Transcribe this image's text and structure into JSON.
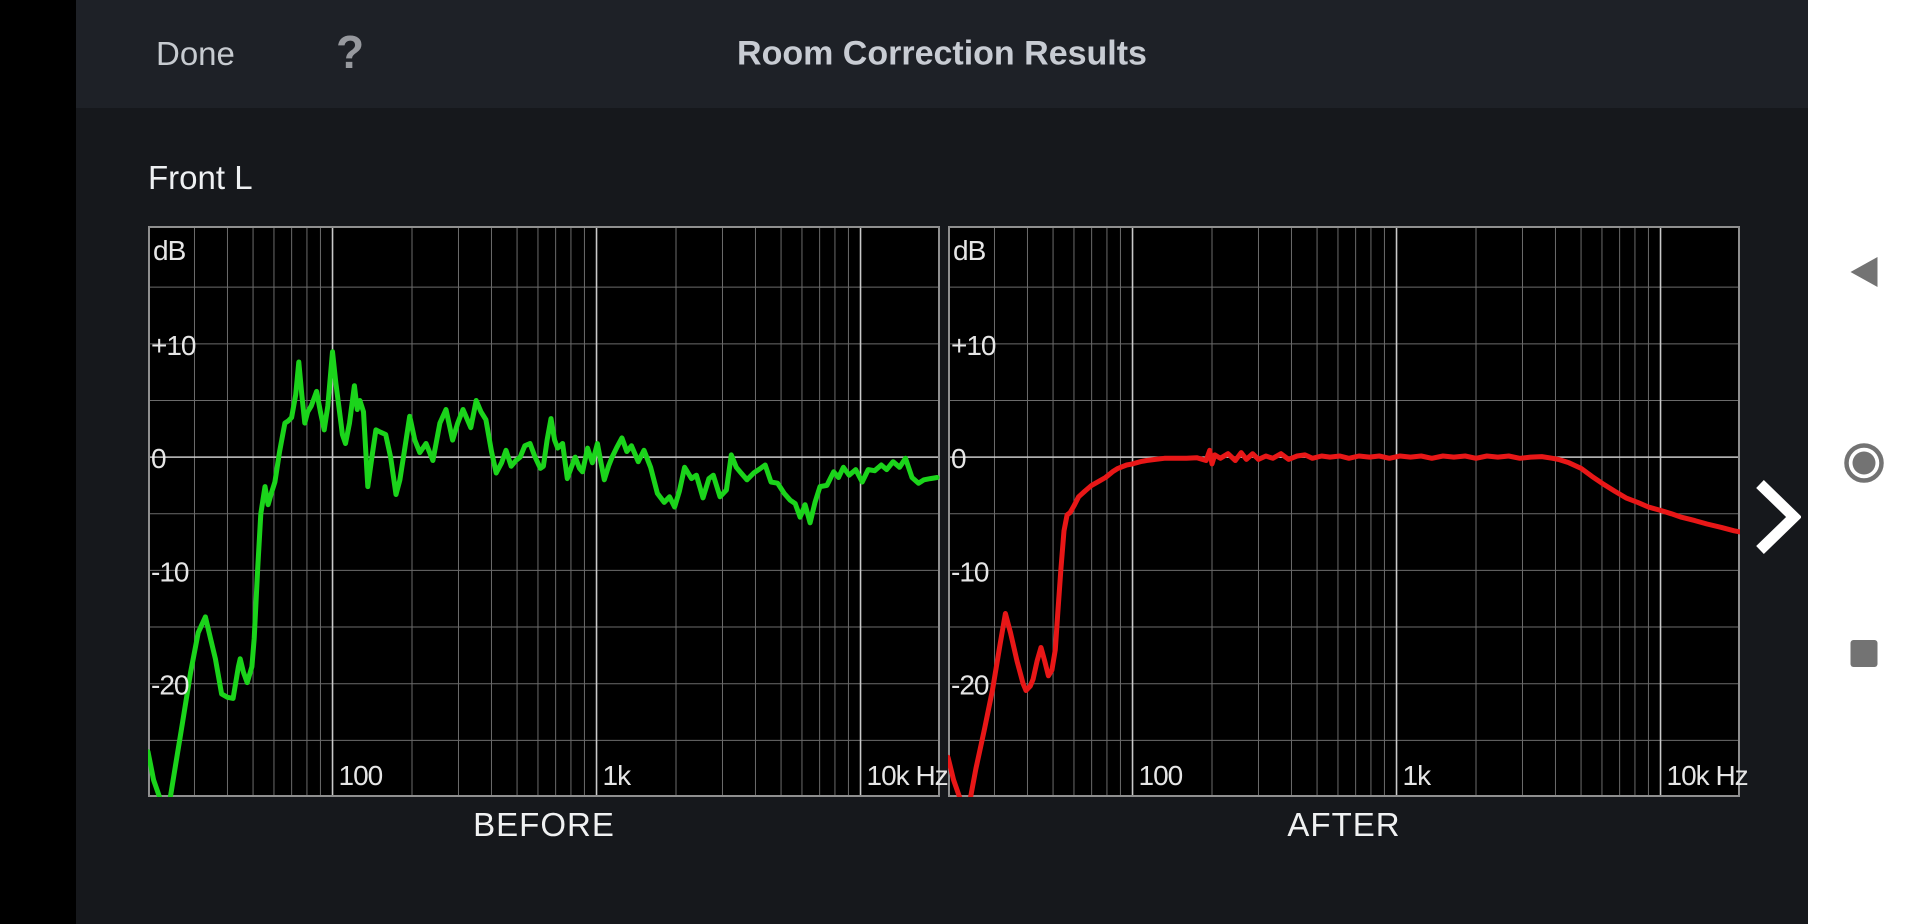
{
  "app": {
    "top_bar": {
      "done_label": "Done",
      "help_icon": "?",
      "title": "Room Correction Results"
    },
    "channel_label": "Front L",
    "pager": {
      "next_chevron": "next"
    }
  },
  "nav_bar": {
    "back_icon": "back-triangle",
    "home_icon": "home-circle",
    "recents_icon": "recents-square"
  },
  "colors": {
    "plot_bg": "#000000",
    "plot_border": "#8f8f8f",
    "grid_minor": "#6b6b6b",
    "grid_major": "#c9c9c9",
    "axis_text": "#e6e6e6",
    "before_curve": "#1bd41b",
    "after_curve": "#e81717",
    "nav_icon": "#737373",
    "chevron": "#ffffff"
  },
  "chart_data": [
    {
      "type": "line",
      "title": "BEFORE",
      "color": "#1bd41b",
      "ylabel": "dB",
      "xscale": "log",
      "x_range": [
        20,
        20000
      ],
      "y_range": [
        -30,
        20.4
      ],
      "grid": {
        "h_lines": [
          {
            "db": 15
          },
          {
            "db": 10,
            "label": "+10"
          },
          {
            "db": 5
          },
          {
            "db": 0,
            "label": "0",
            "major": true
          },
          {
            "db": -5
          },
          {
            "db": -10,
            "label": "-10"
          },
          {
            "db": -15
          },
          {
            "db": -20,
            "label": "-20"
          },
          {
            "db": -25
          }
        ],
        "v_lines": [
          {
            "f": 30
          },
          {
            "f": 40
          },
          {
            "f": 50
          },
          {
            "f": 60
          },
          {
            "f": 70
          },
          {
            "f": 80
          },
          {
            "f": 90
          },
          {
            "f": 100,
            "label": "100",
            "major": true
          },
          {
            "f": 200
          },
          {
            "f": 300
          },
          {
            "f": 400
          },
          {
            "f": 500
          },
          {
            "f": 600
          },
          {
            "f": 700
          },
          {
            "f": 800
          },
          {
            "f": 900
          },
          {
            "f": 1000,
            "label": "1k",
            "major": true
          },
          {
            "f": 2000
          },
          {
            "f": 3000
          },
          {
            "f": 4000
          },
          {
            "f": 5000
          },
          {
            "f": 6000
          },
          {
            "f": 7000
          },
          {
            "f": 8000
          },
          {
            "f": 9000
          },
          {
            "f": 10000,
            "label": "10k Hz",
            "major": true
          }
        ]
      },
      "points": [
        [
          20,
          -26
        ],
        [
          21,
          -28.5
        ],
        [
          22.5,
          -30.5
        ],
        [
          24,
          -30.8
        ],
        [
          25.5,
          -27
        ],
        [
          27,
          -23.5
        ],
        [
          29,
          -19
        ],
        [
          31,
          -15.5
        ],
        [
          33,
          -14.1
        ],
        [
          34.5,
          -16
        ],
        [
          36,
          -17.8
        ],
        [
          38,
          -20.9
        ],
        [
          40,
          -21.2
        ],
        [
          42,
          -21.3
        ],
        [
          44,
          -18.5
        ],
        [
          44.7,
          -17.8
        ],
        [
          46,
          -19
        ],
        [
          47.5,
          -19.9
        ],
        [
          49.5,
          -18.5
        ],
        [
          50.5,
          -16
        ],
        [
          52,
          -10
        ],
        [
          53.5,
          -5
        ],
        [
          55.5,
          -2.6
        ],
        [
          57,
          -4.2
        ],
        [
          59,
          -3
        ],
        [
          60.5,
          -2.2
        ],
        [
          63,
          0.5
        ],
        [
          66,
          3
        ],
        [
          68,
          3.2
        ],
        [
          70,
          3.5
        ],
        [
          72.5,
          5.5
        ],
        [
          74.5,
          8.4
        ],
        [
          76.5,
          5.5
        ],
        [
          78.5,
          3
        ],
        [
          80.5,
          4
        ],
        [
          83,
          4.5
        ],
        [
          87,
          5.8
        ],
        [
          90,
          4
        ],
        [
          93,
          2.4
        ],
        [
          96,
          4.5
        ],
        [
          100,
          9.3
        ],
        [
          103,
          6.5
        ],
        [
          105,
          5
        ],
        [
          109,
          2
        ],
        [
          112,
          1.2
        ],
        [
          116,
          3
        ],
        [
          121,
          6.3
        ],
        [
          124,
          4.2
        ],
        [
          127,
          5
        ],
        [
          131,
          4
        ],
        [
          136,
          -2.6
        ],
        [
          141,
          0
        ],
        [
          146,
          2.4
        ],
        [
          152,
          2.2
        ],
        [
          159,
          2
        ],
        [
          166,
          0
        ],
        [
          174,
          -3.3
        ],
        [
          180,
          -2
        ],
        [
          187,
          0.5
        ],
        [
          196,
          3.6
        ],
        [
          205,
          1.5
        ],
        [
          214,
          0.4
        ],
        [
          226,
          1.2
        ],
        [
          240,
          -0.3
        ],
        [
          255,
          3
        ],
        [
          269,
          4.2
        ],
        [
          285,
          1.5
        ],
        [
          298,
          3
        ],
        [
          312,
          4.2
        ],
        [
          334,
          2.6
        ],
        [
          350,
          5
        ],
        [
          365,
          4
        ],
        [
          381,
          3.3
        ],
        [
          400,
          0.5
        ],
        [
          417,
          -1.4
        ],
        [
          437,
          -0.5
        ],
        [
          454,
          0.6
        ],
        [
          475,
          -0.8
        ],
        [
          495,
          -0.3
        ],
        [
          514,
          0
        ],
        [
          535,
          1
        ],
        [
          560,
          1.2
        ],
        [
          585,
          0
        ],
        [
          613,
          -1
        ],
        [
          629,
          -0.8
        ],
        [
          650,
          1.5
        ],
        [
          672,
          3.4
        ],
        [
          694,
          1.5
        ],
        [
          713,
          0.8
        ],
        [
          744,
          1.2
        ],
        [
          775,
          -1.9
        ],
        [
          800,
          -1
        ],
        [
          830,
          0
        ],
        [
          862,
          -1
        ],
        [
          885,
          -1.3
        ],
        [
          925,
          0.8
        ],
        [
          965,
          -0.5
        ],
        [
          1008,
          1.2
        ],
        [
          1040,
          -0.5
        ],
        [
          1070,
          -2
        ],
        [
          1110,
          -0.8
        ],
        [
          1145,
          0
        ],
        [
          1190,
          0.8
        ],
        [
          1248,
          1.7
        ],
        [
          1302,
          0.5
        ],
        [
          1357,
          1
        ],
        [
          1438,
          -0.4
        ],
        [
          1513,
          0.6
        ],
        [
          1603,
          -0.9
        ],
        [
          1700,
          -3.2
        ],
        [
          1805,
          -4
        ],
        [
          1890,
          -3.5
        ],
        [
          1975,
          -4.4
        ],
        [
          2060,
          -3
        ],
        [
          2155,
          -0.9
        ],
        [
          2290,
          -1.9
        ],
        [
          2390,
          -1.6
        ],
        [
          2530,
          -3.6
        ],
        [
          2665,
          -1.9
        ],
        [
          2770,
          -1.6
        ],
        [
          2935,
          -3.5
        ],
        [
          3105,
          -2.9
        ],
        [
          3240,
          0.2
        ],
        [
          3385,
          -0.9
        ],
        [
          3530,
          -1.4
        ],
        [
          3715,
          -2
        ],
        [
          3940,
          -1.4
        ],
        [
          4180,
          -1
        ],
        [
          4355,
          -0.7
        ],
        [
          4580,
          -2.2
        ],
        [
          4850,
          -2.3
        ],
        [
          5140,
          -3.2
        ],
        [
          5415,
          -3.8
        ],
        [
          5655,
          -4.1
        ],
        [
          5905,
          -5.3
        ],
        [
          6165,
          -4.2
        ],
        [
          6440,
          -5.8
        ],
        [
          6725,
          -4
        ],
        [
          7020,
          -2.6
        ],
        [
          7455,
          -2.5
        ],
        [
          7915,
          -1.3
        ],
        [
          8255,
          -1.8
        ],
        [
          8610,
          -0.9
        ],
        [
          9055,
          -1.6
        ],
        [
          9585,
          -1.1
        ],
        [
          10150,
          -2.2
        ],
        [
          10690,
          -1.1
        ],
        [
          11320,
          -1.2
        ],
        [
          11990,
          -0.7
        ],
        [
          12560,
          -1.1
        ],
        [
          13290,
          -0.4
        ],
        [
          14060,
          -0.9
        ],
        [
          14800,
          -0.1
        ],
        [
          15660,
          -1.8
        ],
        [
          16575,
          -2.3
        ],
        [
          17390,
          -2
        ],
        [
          18400,
          -1.9
        ],
        [
          19500,
          -1.8
        ]
      ]
    },
    {
      "type": "line",
      "title": "AFTER",
      "color": "#e81717",
      "ylabel": "dB",
      "xscale": "log",
      "x_range": [
        20,
        20000
      ],
      "y_range": [
        -30,
        20.4
      ],
      "grid": {
        "h_lines": [
          {
            "db": 15
          },
          {
            "db": 10,
            "label": "+10"
          },
          {
            "db": 5
          },
          {
            "db": 0,
            "label": "0",
            "major": true
          },
          {
            "db": -5
          },
          {
            "db": -10,
            "label": "-10"
          },
          {
            "db": -15
          },
          {
            "db": -20,
            "label": "-20"
          },
          {
            "db": -25
          }
        ],
        "v_lines": [
          {
            "f": 30
          },
          {
            "f": 40
          },
          {
            "f": 50
          },
          {
            "f": 60
          },
          {
            "f": 70
          },
          {
            "f": 80
          },
          {
            "f": 90
          },
          {
            "f": 100,
            "label": "100",
            "major": true
          },
          {
            "f": 200
          },
          {
            "f": 300
          },
          {
            "f": 400
          },
          {
            "f": 500
          },
          {
            "f": 600
          },
          {
            "f": 700
          },
          {
            "f": 800
          },
          {
            "f": 900
          },
          {
            "f": 1000,
            "label": "1k",
            "major": true
          },
          {
            "f": 2000
          },
          {
            "f": 3000
          },
          {
            "f": 4000
          },
          {
            "f": 5000
          },
          {
            "f": 6000
          },
          {
            "f": 7000
          },
          {
            "f": 8000
          },
          {
            "f": 9000
          },
          {
            "f": 10000,
            "label": "10k Hz",
            "major": true
          }
        ]
      },
      "points": [
        [
          20,
          -26.5
        ],
        [
          21,
          -28.5
        ],
        [
          22.5,
          -30.5
        ],
        [
          24,
          -30.8
        ],
        [
          25.5,
          -27.5
        ],
        [
          27.5,
          -24
        ],
        [
          29.5,
          -20.5
        ],
        [
          31.5,
          -16.5
        ],
        [
          33,
          -13.8
        ],
        [
          34.5,
          -15.5
        ],
        [
          36.5,
          -18
        ],
        [
          38.5,
          -20
        ],
        [
          39.5,
          -20.6
        ],
        [
          41,
          -20.2
        ],
        [
          42,
          -19.6
        ],
        [
          43.5,
          -18
        ],
        [
          45,
          -16.8
        ],
        [
          46.5,
          -18
        ],
        [
          48,
          -19.3
        ],
        [
          49.5,
          -18.8
        ],
        [
          51,
          -17
        ],
        [
          52,
          -14
        ],
        [
          53.5,
          -10
        ],
        [
          55,
          -6.5
        ],
        [
          56.5,
          -5.1
        ],
        [
          58,
          -4.9
        ],
        [
          60,
          -4.3
        ],
        [
          62.5,
          -3.5
        ],
        [
          66,
          -3
        ],
        [
          70,
          -2.5
        ],
        [
          75,
          -2.1
        ],
        [
          79,
          -1.8
        ],
        [
          84,
          -1.3
        ],
        [
          88,
          -1
        ],
        [
          95,
          -0.7
        ],
        [
          100,
          -0.6
        ],
        [
          107,
          -0.4
        ],
        [
          113,
          -0.3
        ],
        [
          122,
          -0.2
        ],
        [
          132,
          -0.1
        ],
        [
          145,
          -0.1
        ],
        [
          160,
          -0.1
        ],
        [
          175,
          -0.05
        ],
        [
          190,
          -0.3
        ],
        [
          196,
          0.6
        ],
        [
          200,
          -0.6
        ],
        [
          205,
          0.2
        ],
        [
          215,
          -0.1
        ],
        [
          230,
          0.3
        ],
        [
          245,
          -0.3
        ],
        [
          258,
          0.4
        ],
        [
          270,
          -0.2
        ],
        [
          285,
          0.3
        ],
        [
          300,
          -0.2
        ],
        [
          320,
          0.1
        ],
        [
          340,
          -0.1
        ],
        [
          365,
          0.3
        ],
        [
          390,
          -0.2
        ],
        [
          420,
          0.1
        ],
        [
          450,
          0.2
        ],
        [
          480,
          -0.1
        ],
        [
          520,
          0.1
        ],
        [
          560,
          0
        ],
        [
          610,
          0.1
        ],
        [
          660,
          -0.1
        ],
        [
          720,
          0.1
        ],
        [
          790,
          0
        ],
        [
          860,
          0.1
        ],
        [
          940,
          -0.1
        ],
        [
          1030,
          0.1
        ],
        [
          1130,
          0
        ],
        [
          1240,
          0.1
        ],
        [
          1360,
          -0.1
        ],
        [
          1500,
          0.1
        ],
        [
          1650,
          0
        ],
        [
          1820,
          0.1
        ],
        [
          2000,
          -0.1
        ],
        [
          2200,
          0.1
        ],
        [
          2420,
          0
        ],
        [
          2660,
          0.1
        ],
        [
          2930,
          -0.1
        ],
        [
          3220,
          0
        ],
        [
          3550,
          0.05
        ],
        [
          3900,
          -0.1
        ],
        [
          4100,
          -0.2
        ],
        [
          4500,
          -0.5
        ],
        [
          5000,
          -1
        ],
        [
          5500,
          -1.7
        ],
        [
          6000,
          -2.3
        ],
        [
          6700,
          -3
        ],
        [
          7400,
          -3.6
        ],
        [
          8200,
          -4
        ],
        [
          9000,
          -4.4
        ],
        [
          10000,
          -4.7
        ],
        [
          11000,
          -5
        ],
        [
          12000,
          -5.3
        ],
        [
          13500,
          -5.6
        ],
        [
          15000,
          -5.9
        ],
        [
          17000,
          -6.2
        ],
        [
          19000,
          -6.5
        ],
        [
          20000,
          -6.6
        ]
      ]
    }
  ]
}
